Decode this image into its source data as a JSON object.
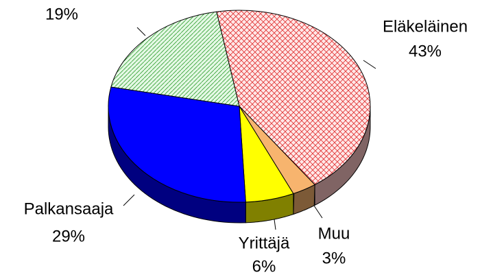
{
  "chart_data": {
    "type": "pie",
    "categories": [
      "Eläkeläinen",
      "Muu",
      "Yrittäjä",
      "Palkansaaja",
      null
    ],
    "values": [
      43,
      3,
      6,
      29,
      19
    ],
    "value_labels": [
      "43%",
      "3%",
      "6%",
      "29%",
      "19%"
    ],
    "colors": [
      "#ffc8c8",
      "#f7b46e",
      "#ffff00",
      "#0000ff",
      "#c8f0c8"
    ]
  }
}
